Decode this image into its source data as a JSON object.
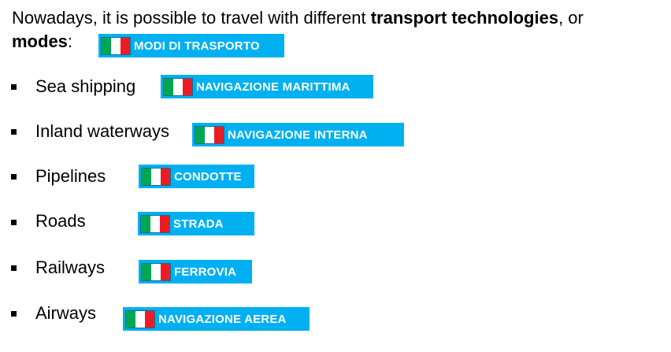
{
  "intro": {
    "text_before": "Nowadays, it is possible to travel with different ",
    "bold_terms": "transport technologies",
    "text_between": ", or ",
    "bold_modes": "modes",
    "text_after": ":"
  },
  "header_tag": {
    "label": "MODI DI TRASPORTO",
    "flag_icon": "italian-flag-icon"
  },
  "colors": {
    "tag_background": "#00b0f0",
    "tag_text": "#ffffff",
    "flag_green": "#00a651",
    "flag_white": "#ffffff",
    "flag_red": "#ed1c24"
  },
  "items": [
    {
      "label": "Sea shipping",
      "translation": "NAVIGAZIONE MARITTIMA"
    },
    {
      "label": "Inland waterways",
      "translation": "NAVIGAZIONE INTERNA"
    },
    {
      "label": "Pipelines",
      "translation": "CONDOTTE"
    },
    {
      "label": "Roads",
      "translation": "STRADA"
    },
    {
      "label": "Railways",
      "translation": "FERROVIA"
    },
    {
      "label": "Airways",
      "translation": "NAVIGAZIONE AEREA"
    }
  ]
}
